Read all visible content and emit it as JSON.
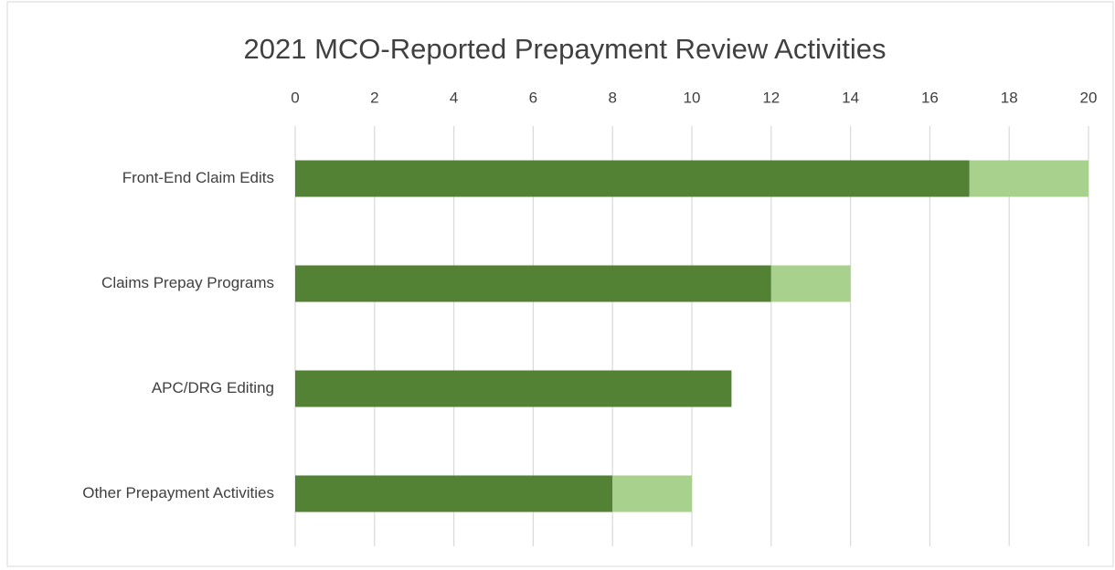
{
  "chart_data": {
    "type": "stacked-bar-horizontal",
    "title": "2021 MCO-Reported Prepayment Review Activities",
    "categories": [
      "Front-End Claim Edits",
      "Claims Prepay Programs",
      "APC/DRG Editing",
      "Other Prepayment Activities"
    ],
    "series": [
      {
        "color": "#548235",
        "values": [
          17,
          12,
          11,
          8
        ]
      },
      {
        "color": "#a9d18e",
        "values": [
          3,
          2,
          0,
          2
        ]
      }
    ],
    "xlim": [
      0,
      20
    ],
    "xticks": [
      0,
      2,
      4,
      6,
      8,
      10,
      12,
      14,
      16,
      18,
      20
    ],
    "grid": true
  }
}
